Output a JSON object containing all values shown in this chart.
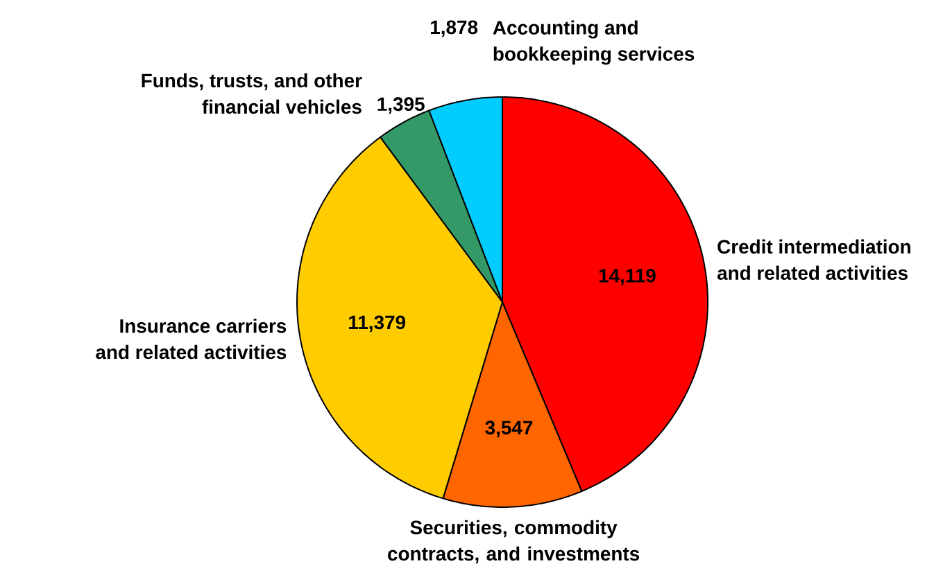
{
  "chart_data": {
    "type": "pie",
    "categories": [
      "Credit intermediation and related activities",
      "Securities, commodity contracts, and investments",
      "Insurance carriers and related activities",
      "Funds, trusts, and other financial vehicles",
      "Accounting and bookkeeping services"
    ],
    "values": [
      14119,
      3547,
      11379,
      1395,
      1878
    ],
    "value_labels": [
      "14,119",
      "3,547",
      "11,379",
      "1,395",
      "1,878"
    ],
    "colors": [
      "#ff0000",
      "#ff6600",
      "#ffcc00",
      "#339966",
      "#00ccff"
    ]
  }
}
